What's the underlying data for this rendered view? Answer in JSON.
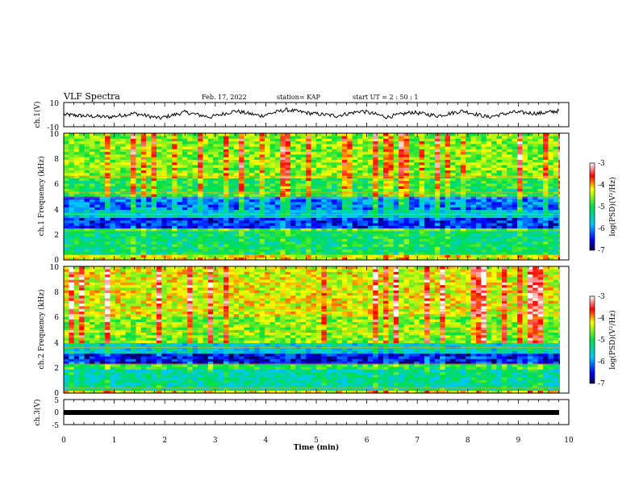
{
  "header": {
    "title": "VLF Spectra",
    "date": "Feb. 17, 2022",
    "station": "station= KAP",
    "start": "start  UT =  2 : 50 : 1"
  },
  "chart_data": [
    {
      "type": "line",
      "panel": "ch1-waveform",
      "ylabel": "ch.1(V)",
      "ylim": [
        -10,
        10
      ],
      "yticks": [
        "10",
        "-10"
      ],
      "xlim": [
        0,
        10
      ],
      "description_values": {
        "x_min": [
          0.4,
          0.9,
          1.4,
          1.9,
          2.4,
          2.9,
          3.4,
          3.9,
          4.4,
          4.9,
          5.4,
          5.9,
          6.4,
          6.9,
          7.4,
          7.9,
          8.4,
          8.9,
          9.4,
          9.8
        ],
        "y_v": [
          -1,
          -2,
          1,
          -3,
          2,
          -2,
          3,
          -1,
          4,
          1,
          -1,
          3,
          -2,
          2,
          -1,
          3,
          -2,
          2,
          1,
          3
        ]
      }
    },
    {
      "type": "heatmap",
      "panel": "ch1-spectrogram",
      "ylabel": "ch.1 Frequency (kHz)",
      "ylim": [
        0,
        10
      ],
      "yticks": [
        "0",
        "2",
        "4",
        "6",
        "8",
        "10"
      ],
      "xlim": [
        0,
        10
      ],
      "colorbar": {
        "label": "log(PSD)(V²/Hz)",
        "range": [
          -7,
          -3
        ],
        "ticks": [
          "-3",
          "-4",
          "-5",
          "-6",
          "-7"
        ]
      },
      "band_levels": [
        {
          "f": [
            0,
            0.5
          ],
          "level": -4.3
        },
        {
          "f": [
            0.5,
            2.2
          ],
          "level": -5.2
        },
        {
          "f": [
            2.2,
            2.6
          ],
          "level": -4.8
        },
        {
          "f": [
            2.6,
            3.4
          ],
          "level": -6.4
        },
        {
          "f": [
            3.4,
            3.9
          ],
          "level": -5.6
        },
        {
          "f": [
            3.9,
            5.0
          ],
          "level": -6.1
        },
        {
          "f": [
            5.0,
            6.5
          ],
          "level": -5.0
        },
        {
          "f": [
            6.5,
            10
          ],
          "level": -4.6
        }
      ]
    },
    {
      "type": "heatmap",
      "panel": "ch2-spectrogram",
      "ylabel": "ch.2 Frequency (kHz)",
      "ylim": [
        0,
        10
      ],
      "yticks": [
        "0",
        "2",
        "4",
        "6",
        "8",
        "10"
      ],
      "xlim": [
        0,
        10
      ],
      "colorbar": {
        "label": "log(PSD)(V²/Hz)",
        "range": [
          -7,
          -3
        ],
        "ticks": [
          "-3",
          "-4",
          "-5",
          "-6",
          "-7"
        ]
      },
      "band_levels": [
        {
          "f": [
            0,
            0.3
          ],
          "level": -4.3
        },
        {
          "f": [
            0.3,
            1.9
          ],
          "level": -5.4
        },
        {
          "f": [
            1.9,
            2.2
          ],
          "level": -5.0
        },
        {
          "f": [
            2.2,
            3.1
          ],
          "level": -6.5
        },
        {
          "f": [
            3.1,
            4.0
          ],
          "level": -5.6
        },
        {
          "f": [
            4.0,
            6.0
          ],
          "level": -4.6
        },
        {
          "f": [
            6.0,
            10
          ],
          "level": -4.3
        }
      ]
    },
    {
      "type": "line",
      "panel": "ch3-waveform",
      "ylabel": "ch.3(V)",
      "ylim": [
        -5,
        5
      ],
      "yticks": [
        "5",
        "0",
        "-5"
      ],
      "xlim": [
        0,
        10
      ],
      "x": [
        0.0,
        9.8
      ],
      "y": [
        0,
        0
      ]
    }
  ],
  "xaxis": {
    "label": "Time (min)",
    "ticks": [
      "0",
      "1",
      "2",
      "3",
      "4",
      "5",
      "6",
      "7",
      "8",
      "9",
      "10"
    ]
  }
}
